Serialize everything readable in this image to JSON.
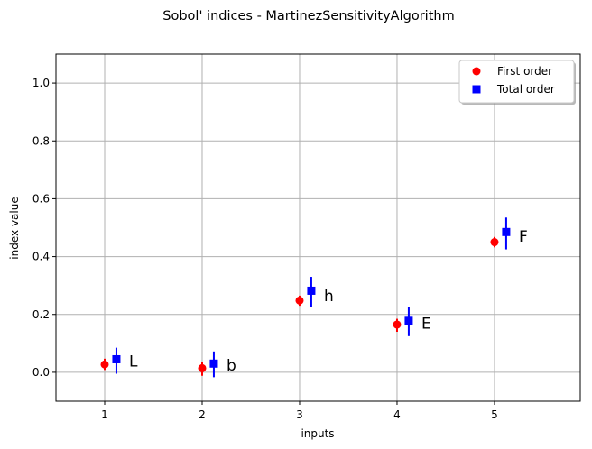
{
  "chart_data": {
    "type": "scatter",
    "title": "Sobol' indices - MartinezSensitivityAlgorithm",
    "xlabel": "inputs",
    "ylabel": "index value",
    "xlim": [
      0.5,
      5.88
    ],
    "ylim": [
      -0.1,
      1.1
    ],
    "x_ticks": [
      "1",
      "2",
      "3",
      "4",
      "5"
    ],
    "y_ticks": [
      "0.0",
      "0.2",
      "0.4",
      "0.6",
      "0.8",
      "1.0"
    ],
    "grid": true,
    "legend_position": "top-right",
    "series": [
      {
        "name": "First order",
        "color": "#ff0000",
        "marker": "circle",
        "x": [
          1,
          2,
          3,
          4,
          5
        ],
        "values": [
          0.027,
          0.014,
          0.248,
          0.165,
          0.45
        ],
        "error_low": [
          0.008,
          -0.012,
          0.23,
          0.14,
          0.432
        ],
        "error_high": [
          0.047,
          0.036,
          0.265,
          0.185,
          0.468
        ]
      },
      {
        "name": "Total order",
        "color": "#0000ff",
        "marker": "square",
        "x": [
          1.12,
          2.12,
          3.12,
          4.12,
          5.12
        ],
        "values": [
          0.045,
          0.03,
          0.282,
          0.178,
          0.485
        ],
        "error_low": [
          -0.005,
          -0.017,
          0.225,
          0.125,
          0.425
        ],
        "error_high": [
          0.085,
          0.072,
          0.33,
          0.225,
          0.535
        ]
      }
    ],
    "annotations": [
      {
        "text": "L",
        "x": 1.25,
        "y": 0.038
      },
      {
        "text": "b",
        "x": 2.25,
        "y": 0.025
      },
      {
        "text": "h",
        "x": 3.25,
        "y": 0.265
      },
      {
        "text": "E",
        "x": 4.25,
        "y": 0.17
      },
      {
        "text": "F",
        "x": 5.25,
        "y": 0.47
      }
    ]
  }
}
